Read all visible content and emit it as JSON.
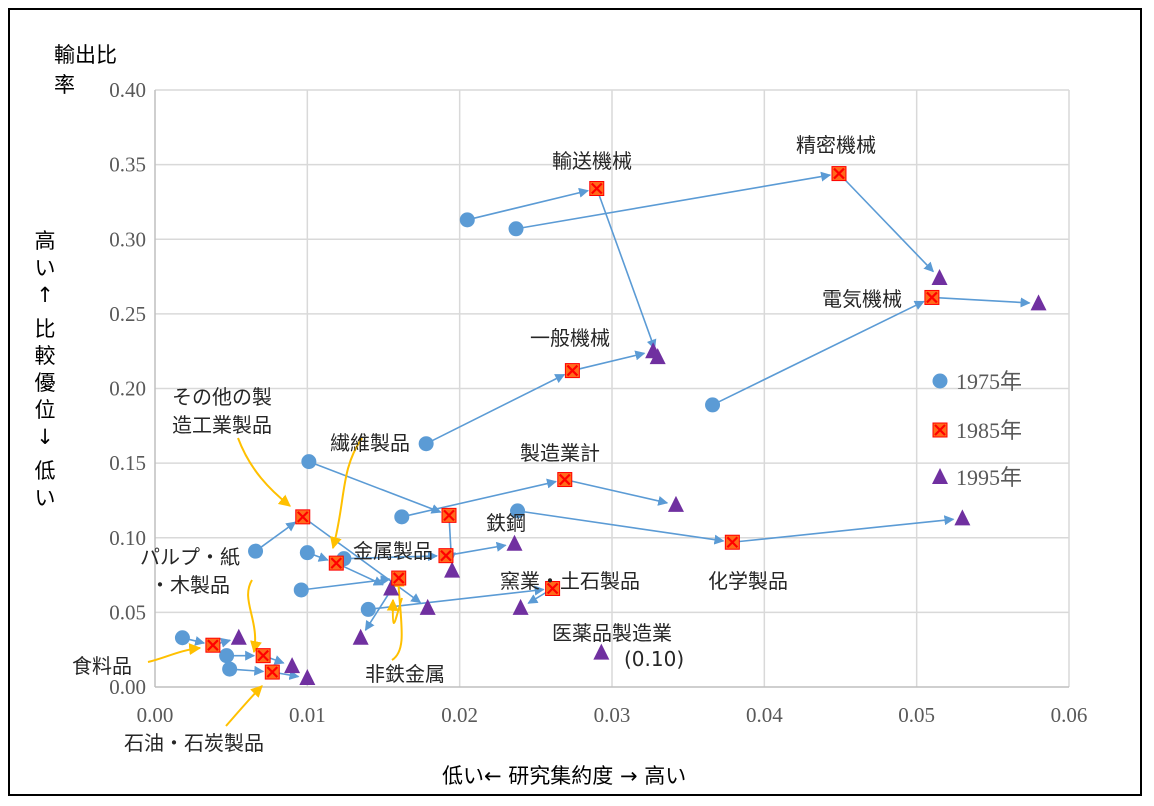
{
  "chart_data": {
    "type": "scatter",
    "xlabel": "低い← 研究集約度 → 高い",
    "ylabel_top": [
      "輸出比",
      "率"
    ],
    "ylabel_side": [
      "高い",
      "↑",
      "比較優位",
      "↓",
      "低い"
    ],
    "xlim": [
      0,
      0.06
    ],
    "ylim": [
      0,
      0.4
    ],
    "x_ticks": [
      "0.00",
      "0.01",
      "0.02",
      "0.03",
      "0.04",
      "0.05",
      "0.06"
    ],
    "y_ticks": [
      "0.00",
      "0.05",
      "0.10",
      "0.15",
      "0.20",
      "0.25",
      "0.30",
      "0.35",
      "0.40"
    ],
    "grid": true,
    "legend_position": "right",
    "series": [
      {
        "name": "1975年",
        "marker": "circle",
        "color": "#5B9BD5"
      },
      {
        "name": "1985年",
        "marker": "square-x",
        "color": "#FF0000"
      },
      {
        "name": "1995年",
        "marker": "triangle",
        "color": "#7030A0"
      }
    ],
    "industries": [
      {
        "label": "輸送機械",
        "points": [
          [
            0.0205,
            0.313
          ],
          [
            0.029,
            0.334
          ],
          [
            0.033,
            0.221
          ]
        ]
      },
      {
        "label": "精密機械",
        "points": [
          [
            0.0237,
            0.307
          ],
          [
            0.0449,
            0.344
          ],
          [
            0.0515,
            0.274
          ]
        ]
      },
      {
        "label": "電気機械",
        "points": [
          [
            0.0366,
            0.189
          ],
          [
            0.051,
            0.261
          ],
          [
            0.058,
            0.257
          ]
        ]
      },
      {
        "label": "一般機械",
        "points": [
          [
            0.0178,
            0.163
          ],
          [
            0.0274,
            0.212
          ],
          [
            0.0327,
            0.225
          ]
        ]
      },
      {
        "label": "製造業計",
        "points": [
          [
            0.0162,
            0.114
          ],
          [
            0.0269,
            0.139
          ],
          [
            0.0342,
            0.122
          ]
        ]
      },
      {
        "label": "化学製品",
        "points": [
          [
            0.0238,
            0.118
          ],
          [
            0.0379,
            0.097
          ],
          [
            0.053,
            0.113
          ]
        ]
      },
      {
        "label": "鉄鋼",
        "points": [
          [
            0.0101,
            0.151
          ],
          [
            0.0193,
            0.115
          ],
          [
            0.0195,
            0.078
          ]
        ]
      },
      {
        "label": "繊維製品",
        "points": [
          [
            0.0124,
            0.086
          ],
          [
            0.0191,
            0.088
          ],
          [
            0.0236,
            0.096
          ]
        ]
      },
      {
        "label": "窯業・土石製品",
        "points": [
          [
            0.014,
            0.052
          ],
          [
            0.0261,
            0.066
          ],
          [
            0.024,
            0.053
          ]
        ]
      },
      {
        "label": "その他の製造工業製品",
        "points": [
          [
            0.0066,
            0.091
          ],
          [
            0.0097,
            0.114
          ],
          [
            0.0179,
            0.053
          ]
        ]
      },
      {
        "label": "金属製品",
        "points": [
          [
            0.01,
            0.09
          ],
          [
            0.0119,
            0.083
          ],
          [
            0.0155,
            0.066
          ]
        ]
      },
      {
        "label": "非鉄金属",
        "points": [
          [
            0.0096,
            0.065
          ],
          [
            0.016,
            0.073
          ],
          [
            0.0135,
            0.033
          ]
        ]
      },
      {
        "label": "パルプ・紙・木製品",
        "points": [
          [
            0.0047,
            0.021
          ],
          [
            0.0071,
            0.021
          ],
          [
            0.009,
            0.014
          ]
        ]
      },
      {
        "label": "食料品",
        "points": [
          [
            0.0018,
            0.033
          ],
          [
            0.0038,
            0.028
          ],
          [
            0.0055,
            0.033
          ]
        ]
      },
      {
        "label": "石油・石炭製品",
        "points": [
          [
            0.0049,
            0.012
          ],
          [
            0.0077,
            0.01
          ],
          [
            0.01,
            0.006
          ]
        ]
      },
      {
        "label": "医薬品製造業",
        "points": [
          [
            0.0293,
            0.023
          ]
        ]
      }
    ],
    "annotations": [
      {
        "text": "輸送機械"
      },
      {
        "text": "精密機械"
      },
      {
        "text": "電気機械"
      },
      {
        "text": "一般機械"
      },
      {
        "text": "その他の製"
      },
      {
        "text": "造工業製品"
      },
      {
        "text": "繊維製品"
      },
      {
        "text": "製造業計"
      },
      {
        "text": "鉄鋼"
      },
      {
        "text": "化学製品"
      },
      {
        "text": "窯業・土石製品"
      },
      {
        "text": "金属製品"
      },
      {
        "text": "パルプ・紙"
      },
      {
        "text": "・木製品"
      },
      {
        "text": "医薬品製造業"
      },
      {
        "text": "(0.10)"
      },
      {
        "text": "食料品"
      },
      {
        "text": "非鉄金属"
      },
      {
        "text": "石油・石炭製品"
      }
    ]
  }
}
